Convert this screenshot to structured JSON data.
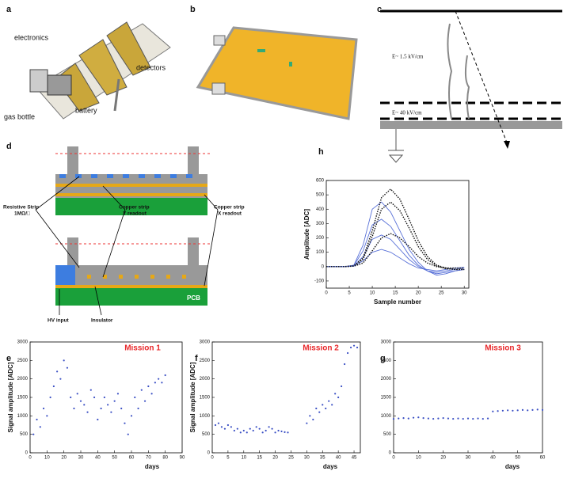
{
  "panels": {
    "a": {
      "label": "a",
      "texts": [
        "electronics",
        "detectors",
        "gas bottle",
        "battery"
      ]
    },
    "b": {
      "label": "b"
    },
    "c": {
      "label": "c",
      "field_upper": "E~ 1.5 kV/cm",
      "field_lower": "E~ 40 kV/cm"
    },
    "d": {
      "label": "d",
      "resistive": "Resistive Strip",
      "resistivity": "1MΩ/□",
      "copper_y": "Copper strip",
      "y_readout": "Y readout",
      "copper_x": "Copper strip",
      "x_readout": "X readout",
      "pcb": "PCB",
      "hv": "HV input",
      "insulator": "Insulator"
    }
  },
  "chart_data": [
    {
      "type": "line",
      "panel": "h",
      "xlabel": "Sample number",
      "ylabel": "Amplitude [ADC]",
      "x": [
        0,
        2,
        4,
        6,
        8,
        10,
        12,
        14,
        16,
        18,
        20,
        22,
        24,
        26,
        28,
        30
      ],
      "series": [
        {
          "color": "#5a72d8",
          "dashed": false,
          "values": [
            0,
            0,
            0,
            10,
            150,
            400,
            450,
            380,
            250,
            120,
            30,
            -30,
            -60,
            -50,
            -30,
            -20
          ]
        },
        {
          "color": "#5a72d8",
          "dashed": false,
          "values": [
            0,
            0,
            0,
            8,
            110,
            290,
            330,
            280,
            180,
            80,
            10,
            -30,
            -50,
            -40,
            -30,
            -20
          ]
        },
        {
          "color": "#5a72d8",
          "dashed": false,
          "values": [
            0,
            0,
            0,
            5,
            70,
            190,
            220,
            190,
            120,
            50,
            0,
            -30,
            -40,
            -30,
            -20,
            -10
          ]
        },
        {
          "color": "#5a72d8",
          "dashed": false,
          "values": [
            0,
            0,
            0,
            3,
            40,
            100,
            120,
            100,
            60,
            20,
            -10,
            -20,
            -30,
            -20,
            -10,
            -5
          ]
        },
        {
          "color": "#111111",
          "dashed": true,
          "values": [
            0,
            0,
            0,
            5,
            60,
            250,
            480,
            540,
            470,
            330,
            180,
            70,
            10,
            -10,
            -20,
            -20
          ]
        },
        {
          "color": "#111111",
          "dashed": true,
          "values": [
            0,
            0,
            0,
            5,
            50,
            210,
            400,
            450,
            390,
            270,
            140,
            50,
            5,
            -15,
            -20,
            -20
          ]
        },
        {
          "color": "#111111",
          "dashed": true,
          "values": [
            0,
            0,
            0,
            3,
            25,
            110,
            200,
            230,
            200,
            140,
            70,
            25,
            0,
            -10,
            -10,
            -10
          ]
        }
      ],
      "xlim": [
        0,
        31
      ],
      "xticks": [
        0,
        5,
        10,
        15,
        20,
        25,
        30
      ],
      "ylim": [
        -150,
        600
      ],
      "yticks": [
        -100,
        0,
        100,
        200,
        300,
        400,
        500,
        600
      ]
    },
    {
      "type": "scatter",
      "panel": "e",
      "title": "Mission 1",
      "title_color": "#e8282b",
      "xlabel": "days",
      "ylabel": "Signal amplitude [ADC]",
      "color": "#3a4fc4",
      "x": [
        2,
        4,
        6,
        8,
        10,
        12,
        14,
        16,
        18,
        20,
        22,
        24,
        26,
        28,
        30,
        32,
        34,
        36,
        38,
        40,
        42,
        44,
        46,
        48,
        50,
        52,
        54,
        56,
        58,
        60,
        62,
        64,
        66,
        68,
        70,
        72,
        74,
        76,
        78,
        80
      ],
      "values": [
        500,
        900,
        700,
        1200,
        1000,
        1500,
        1800,
        2200,
        2000,
        2500,
        2300,
        1500,
        1200,
        1600,
        1400,
        1300,
        1100,
        1700,
        1500,
        900,
        1200,
        1500,
        1300,
        1100,
        1400,
        1600,
        1200,
        800,
        500,
        1000,
        1500,
        1200,
        1700,
        1400,
        1800,
        1600,
        1900,
        2000,
        1900,
        2100
      ],
      "xlim": [
        0,
        90
      ],
      "xticks": [
        0,
        10,
        20,
        30,
        40,
        50,
        60,
        70,
        80,
        90
      ],
      "ylim": [
        0,
        3000
      ],
      "yticks": [
        0,
        500,
        1000,
        1500,
        2000,
        2500,
        3000
      ]
    },
    {
      "type": "scatter",
      "panel": "f",
      "title": "Mission 2",
      "title_color": "#e8282b",
      "xlabel": "days",
      "ylabel": "Signal amplitude [ADC]",
      "color": "#3a4fc4",
      "x": [
        1,
        2,
        3,
        4,
        5,
        6,
        7,
        8,
        9,
        10,
        11,
        12,
        13,
        14,
        15,
        16,
        17,
        18,
        19,
        20,
        21,
        22,
        23,
        24,
        30,
        31,
        32,
        33,
        34,
        35,
        36,
        37,
        38,
        39,
        40,
        41,
        42,
        43,
        44,
        45,
        46
      ],
      "values": [
        750,
        800,
        700,
        650,
        750,
        700,
        600,
        650,
        550,
        600,
        550,
        650,
        600,
        700,
        650,
        550,
        600,
        700,
        650,
        550,
        600,
        580,
        560,
        550,
        800,
        1000,
        900,
        1200,
        1100,
        1300,
        1200,
        1400,
        1300,
        1600,
        1500,
        1800,
        2400,
        2700,
        2850,
        2900,
        2850
      ],
      "xlim": [
        0,
        47
      ],
      "xticks": [
        0,
        5,
        10,
        15,
        20,
        25,
        30,
        35,
        40,
        45
      ],
      "ylim": [
        0,
        3000
      ],
      "yticks": [
        0,
        500,
        1000,
        1500,
        2000,
        2500,
        3000
      ]
    },
    {
      "type": "scatter",
      "panel": "g",
      "title": "Mission 3",
      "title_color": "#e8282b",
      "xlabel": "days",
      "color": "#3a4fc4",
      "x": [
        0,
        2,
        4,
        6,
        8,
        10,
        12,
        14,
        16,
        18,
        20,
        22,
        24,
        26,
        28,
        30,
        32,
        34,
        36,
        38,
        40,
        42,
        44,
        46,
        48,
        50,
        52,
        54,
        56,
        58,
        60
      ],
      "values": [
        920,
        930,
        940,
        930,
        950,
        960,
        940,
        930,
        920,
        930,
        940,
        930,
        920,
        930,
        920,
        930,
        920,
        930,
        920,
        930,
        1120,
        1130,
        1140,
        1150,
        1140,
        1150,
        1160,
        1150,
        1160,
        1170,
        1160
      ],
      "xlim": [
        0,
        60
      ],
      "xticks": [
        0,
        10,
        20,
        30,
        40,
        50,
        60
      ],
      "ylim": [
        0,
        3000
      ],
      "yticks": [
        0,
        500,
        1000,
        1500,
        2000,
        2500,
        3000
      ]
    }
  ]
}
